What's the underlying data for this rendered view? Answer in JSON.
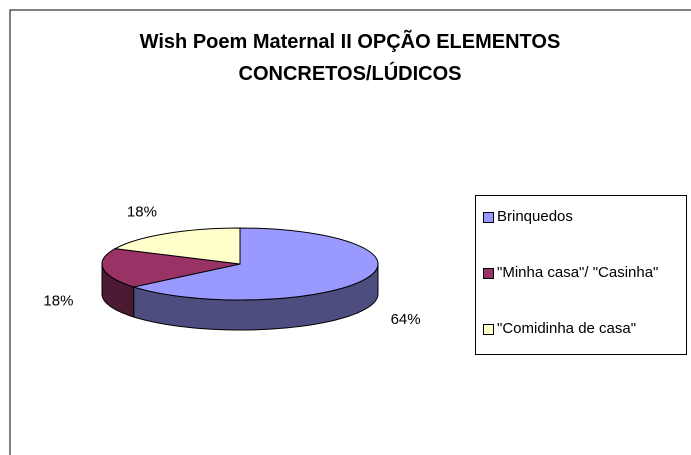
{
  "chart_data": {
    "type": "pie3d",
    "title": "Wish Poem Maternal II OPÇÃO ELEMENTOS CONCRETOS/LÚDICOS",
    "categories": [
      "Brinquedos",
      "\"Minha casa\"/ \"Casinha\"",
      "\"Comidinha de casa\""
    ],
    "values": [
      64,
      18,
      18
    ],
    "value_labels": [
      "64%",
      "18%",
      "18%"
    ],
    "colors": [
      "#9999ff",
      "#993366",
      "#ffffcc"
    ],
    "legend": "right"
  }
}
